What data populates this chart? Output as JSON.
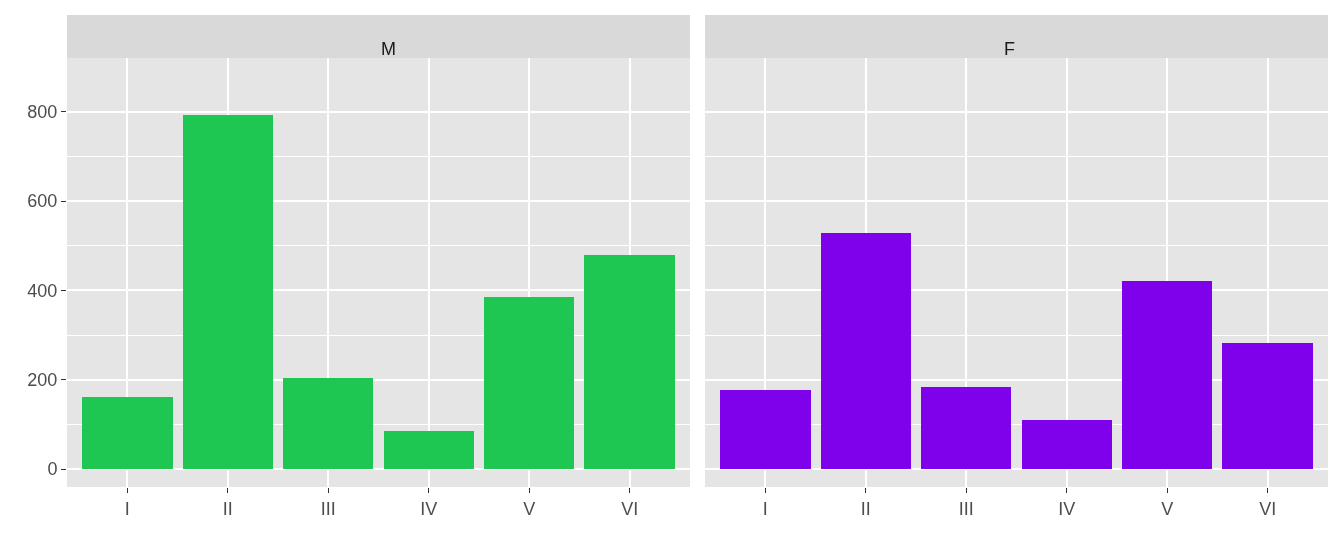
{
  "chart_data": [
    {
      "type": "bar",
      "title": "M",
      "categories": [
        "I",
        "II",
        "III",
        "IV",
        "V",
        "VI"
      ],
      "values": [
        162,
        792,
        203,
        85,
        386,
        479
      ],
      "color": "#1dc752",
      "ylim": [
        -40,
        920
      ],
      "yticks": [
        0,
        200,
        400,
        600,
        800
      ],
      "grid": true
    },
    {
      "type": "bar",
      "title": "F",
      "categories": [
        "I",
        "II",
        "III",
        "IV",
        "V",
        "VI"
      ],
      "values": [
        177,
        528,
        183,
        110,
        422,
        282
      ],
      "color": "#7f00eb",
      "ylim": [
        -40,
        920
      ],
      "yticks": [
        0,
        200,
        400,
        600,
        800
      ],
      "grid": true,
      "tick_labels": "x"
    }
  ]
}
